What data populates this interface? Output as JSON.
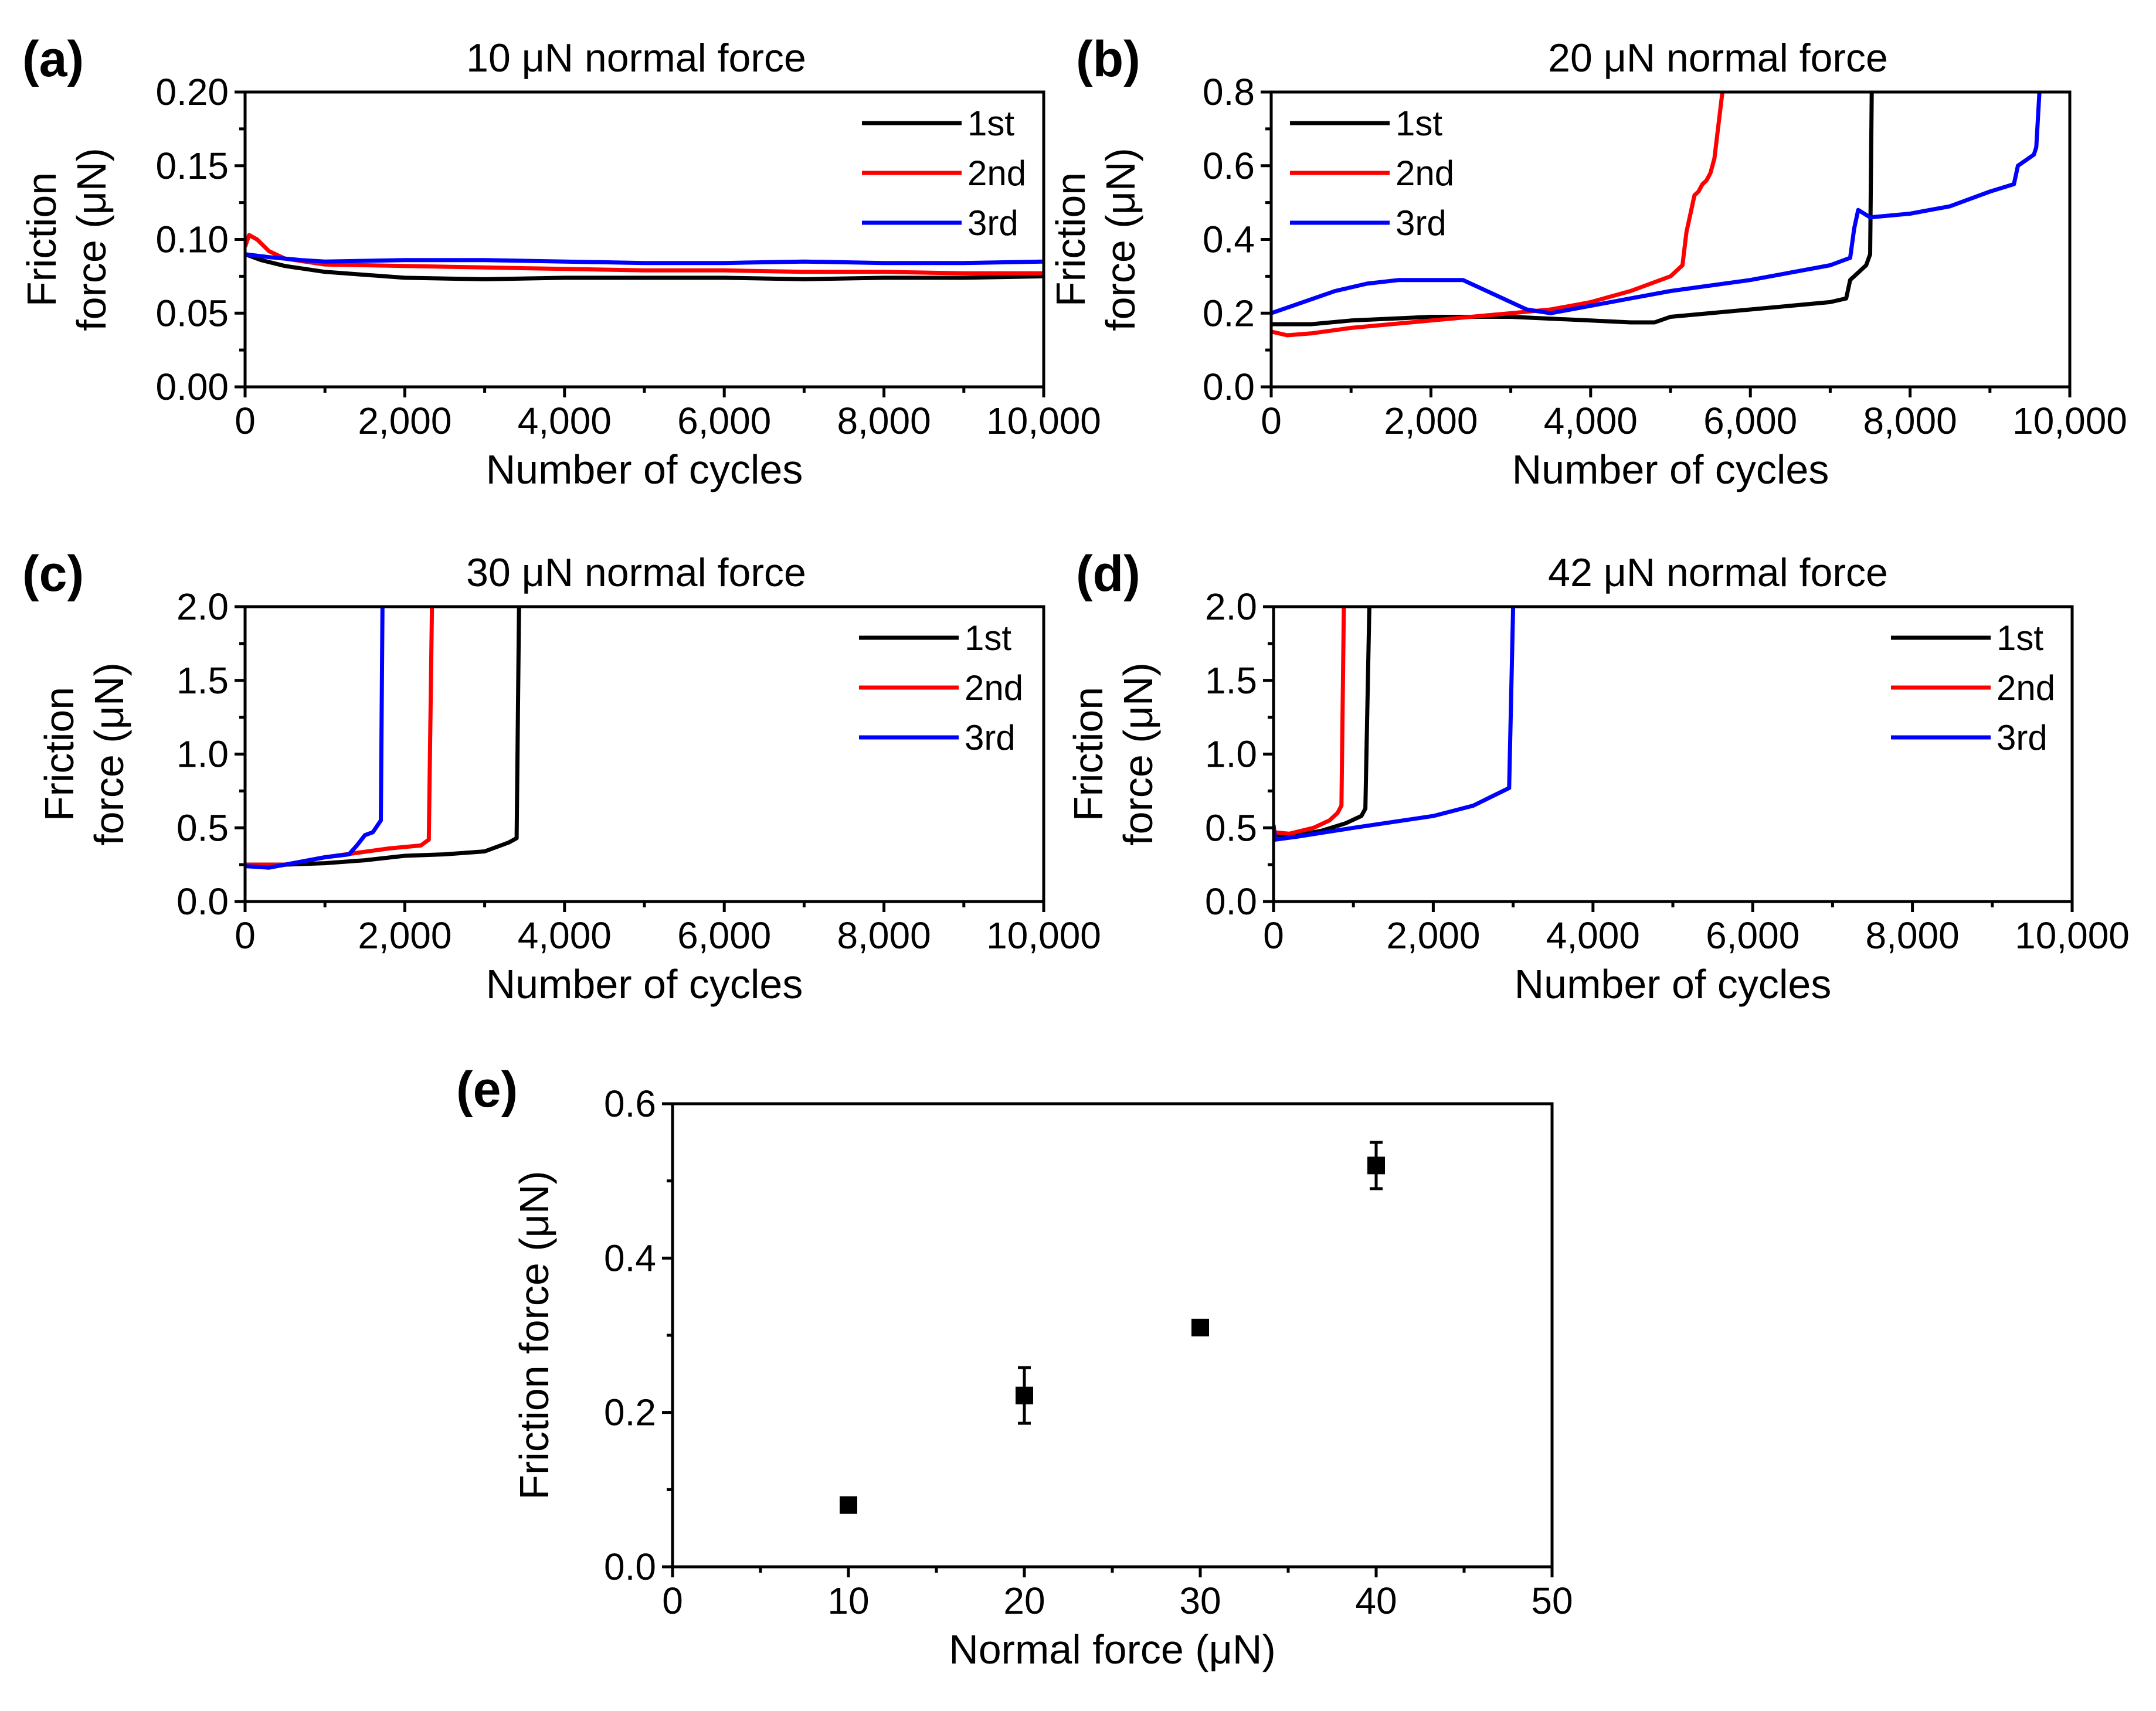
{
  "colors": {
    "1st": "#000000",
    "2nd": "#ff0000",
    "3rd": "#0000ff",
    "marker": "#000000"
  },
  "chart_data": [
    {
      "panel": "(a)",
      "type": "line",
      "title": "10 μN normal force",
      "xlabel": "Number of cycles",
      "ylabel_lines": [
        "Friction",
        "force (μN)"
      ],
      "xlim": [
        0,
        10000
      ],
      "ylim": [
        0,
        0.2
      ],
      "xticks": [
        0,
        2000,
        4000,
        6000,
        8000,
        10000
      ],
      "xtick_labels": [
        "0",
        "2,000",
        "4,000",
        "6,000",
        "8,000",
        "10,000"
      ],
      "yticks": [
        0,
        0.05,
        0.1,
        0.15,
        0.2
      ],
      "ytick_labels": [
        "0.00",
        "0.05",
        "0.10",
        "0.15",
        "0.20"
      ],
      "legend_position": "top-right",
      "series": [
        {
          "name": "1st",
          "color_key": "1st",
          "x": [
            0,
            200,
            500,
            1000,
            2000,
            3000,
            4000,
            5000,
            6000,
            7000,
            8000,
            9000,
            10000
          ],
          "y": [
            0.09,
            0.086,
            0.082,
            0.078,
            0.074,
            0.073,
            0.074,
            0.074,
            0.074,
            0.073,
            0.074,
            0.074,
            0.075
          ]
        },
        {
          "name": "2nd",
          "color_key": "2nd",
          "x": [
            0,
            50,
            150,
            300,
            500,
            1000,
            2000,
            3000,
            4000,
            5000,
            6000,
            7000,
            8000,
            9000,
            10000
          ],
          "y": [
            0.095,
            0.103,
            0.1,
            0.092,
            0.087,
            0.083,
            0.082,
            0.081,
            0.08,
            0.079,
            0.079,
            0.078,
            0.078,
            0.077,
            0.077
          ]
        },
        {
          "name": "3rd",
          "color_key": "3rd",
          "x": [
            0,
            300,
            700,
            1000,
            2000,
            3000,
            4000,
            5000,
            6000,
            7000,
            8000,
            9000,
            10000
          ],
          "y": [
            0.09,
            0.088,
            0.086,
            0.085,
            0.086,
            0.086,
            0.085,
            0.084,
            0.084,
            0.085,
            0.084,
            0.084,
            0.085
          ]
        }
      ]
    },
    {
      "panel": "(b)",
      "type": "line",
      "title": "20 μN normal force",
      "xlabel": "Number of cycles",
      "ylabel_lines": [
        "Friction",
        "force (μN)"
      ],
      "xlim": [
        0,
        10000
      ],
      "ylim": [
        0,
        0.8
      ],
      "xticks": [
        0,
        2000,
        4000,
        6000,
        8000,
        10000
      ],
      "xtick_labels": [
        "0",
        "2,000",
        "4,000",
        "6,000",
        "8,000",
        "10,000"
      ],
      "yticks": [
        0,
        0.2,
        0.4,
        0.6,
        0.8
      ],
      "ytick_labels": [
        "0.0",
        "0.2",
        "0.4",
        "0.6",
        "0.8"
      ],
      "legend_position": "top-left",
      "series": [
        {
          "name": "1st",
          "color_key": "1st",
          "x": [
            0,
            500,
            1000,
            2000,
            3000,
            4000,
            4500,
            4800,
            5000,
            6000,
            7000,
            7200,
            7250,
            7450,
            7500,
            7520
          ],
          "y": [
            0.17,
            0.17,
            0.18,
            0.19,
            0.19,
            0.18,
            0.175,
            0.175,
            0.19,
            0.21,
            0.23,
            0.24,
            0.29,
            0.33,
            0.36,
            0.8
          ]
        },
        {
          "name": "2nd",
          "color_key": "2nd",
          "x": [
            0,
            200,
            500,
            1000,
            2000,
            3000,
            3500,
            4000,
            4500,
            5000,
            5150,
            5200,
            5300,
            5350,
            5400,
            5450,
            5500,
            5550,
            5650
          ],
          "y": [
            0.15,
            0.14,
            0.145,
            0.16,
            0.18,
            0.2,
            0.21,
            0.23,
            0.26,
            0.3,
            0.33,
            0.42,
            0.52,
            0.53,
            0.55,
            0.56,
            0.58,
            0.62,
            0.8
          ]
        },
        {
          "name": "3rd",
          "color_key": "3rd",
          "x": [
            0,
            400,
            800,
            1200,
            1600,
            2000,
            2400,
            2800,
            3200,
            3500,
            4000,
            5000,
            6000,
            7000,
            7250,
            7300,
            7350,
            7500,
            8000,
            8500,
            9000,
            9300,
            9350,
            9550,
            9580,
            9620
          ],
          "y": [
            0.2,
            0.23,
            0.26,
            0.28,
            0.29,
            0.29,
            0.29,
            0.25,
            0.21,
            0.2,
            0.22,
            0.26,
            0.29,
            0.33,
            0.35,
            0.43,
            0.48,
            0.46,
            0.47,
            0.49,
            0.53,
            0.55,
            0.6,
            0.63,
            0.65,
            0.8
          ]
        }
      ]
    },
    {
      "panel": "(c)",
      "type": "line",
      "title": "30 μN normal force",
      "xlabel": "Number of cycles",
      "ylabel_lines": [
        "Friction",
        "force (μN)"
      ],
      "xlim": [
        0,
        10000
      ],
      "ylim": [
        0,
        2.0
      ],
      "xticks": [
        0,
        2000,
        4000,
        6000,
        8000,
        10000
      ],
      "xtick_labels": [
        "0",
        "2,000",
        "4,000",
        "6,000",
        "8,000",
        "10,000"
      ],
      "yticks": [
        0,
        0.5,
        1.0,
        1.5,
        2.0
      ],
      "ytick_labels": [
        "0.0",
        "0.5",
        "1.0",
        "1.5",
        "2.0"
      ],
      "legend_position": "top-right",
      "series": [
        {
          "name": "1st",
          "color_key": "1st",
          "x": [
            0,
            500,
            1000,
            1500,
            2000,
            2500,
            3000,
            3300,
            3400,
            3430
          ],
          "y": [
            0.25,
            0.25,
            0.26,
            0.28,
            0.31,
            0.32,
            0.34,
            0.4,
            0.43,
            2.0
          ]
        },
        {
          "name": "2nd",
          "color_key": "2nd",
          "x": [
            0,
            500,
            1000,
            1400,
            1800,
            2200,
            2300,
            2340
          ],
          "y": [
            0.25,
            0.25,
            0.3,
            0.33,
            0.36,
            0.38,
            0.42,
            2.0
          ]
        },
        {
          "name": "3rd",
          "color_key": "3rd",
          "x": [
            0,
            300,
            700,
            1000,
            1300,
            1400,
            1500,
            1600,
            1700,
            1720
          ],
          "y": [
            0.24,
            0.23,
            0.27,
            0.3,
            0.32,
            0.38,
            0.45,
            0.47,
            0.55,
            2.0
          ]
        }
      ]
    },
    {
      "panel": "(d)",
      "type": "line",
      "title": "42 μN normal force",
      "xlabel": "Number of cycles",
      "ylabel_lines": [
        "Friction",
        "force (μN)"
      ],
      "xlim": [
        0,
        10000
      ],
      "ylim": [
        0,
        2.0
      ],
      "xticks": [
        0,
        2000,
        4000,
        6000,
        8000,
        10000
      ],
      "xtick_labels": [
        "0",
        "2,000",
        "4,000",
        "6,000",
        "8,000",
        "10,000"
      ],
      "yticks": [
        0,
        0.5,
        1.0,
        1.5,
        2.0
      ],
      "ytick_labels": [
        "0.0",
        "0.5",
        "1.0",
        "1.5",
        "2.0"
      ],
      "legend_position": "top-right",
      "series": [
        {
          "name": "1st",
          "color_key": "1st",
          "x": [
            0,
            300,
            600,
            900,
            1100,
            1150,
            1200
          ],
          "y": [
            0.45,
            0.45,
            0.48,
            0.53,
            0.58,
            0.63,
            2.0
          ]
        },
        {
          "name": "2nd",
          "color_key": "2nd",
          "x": [
            0,
            200,
            500,
            700,
            800,
            850,
            880
          ],
          "y": [
            0.47,
            0.46,
            0.5,
            0.55,
            0.6,
            0.65,
            2.0
          ]
        },
        {
          "name": "3rd",
          "color_key": "3rd",
          "x": [
            0,
            20,
            300,
            1000,
            2000,
            2500,
            2950,
            3000
          ],
          "y": [
            0.52,
            0.42,
            0.44,
            0.5,
            0.58,
            0.65,
            0.77,
            2.0
          ]
        }
      ]
    },
    {
      "panel": "(e)",
      "type": "scatter",
      "title": "",
      "xlabel": "Normal force (μN)",
      "ylabel_lines": [
        "Friction force (μN)"
      ],
      "xlim": [
        0,
        50
      ],
      "ylim": [
        0,
        0.6
      ],
      "xticks": [
        0,
        10,
        20,
        30,
        40,
        50
      ],
      "xtick_labels": [
        "0",
        "10",
        "20",
        "30",
        "40",
        "50"
      ],
      "yticks": [
        0,
        0.2,
        0.4,
        0.6
      ],
      "ytick_labels": [
        "0.0",
        "0.2",
        "0.4",
        "0.6"
      ],
      "series": [
        {
          "name": "",
          "color_key": "marker",
          "x": [
            10,
            20,
            30,
            40
          ],
          "y": [
            0.08,
            0.222,
            0.31,
            0.52
          ],
          "yerr": [
            0.005,
            0.036,
            0.007,
            0.03
          ]
        }
      ]
    }
  ]
}
